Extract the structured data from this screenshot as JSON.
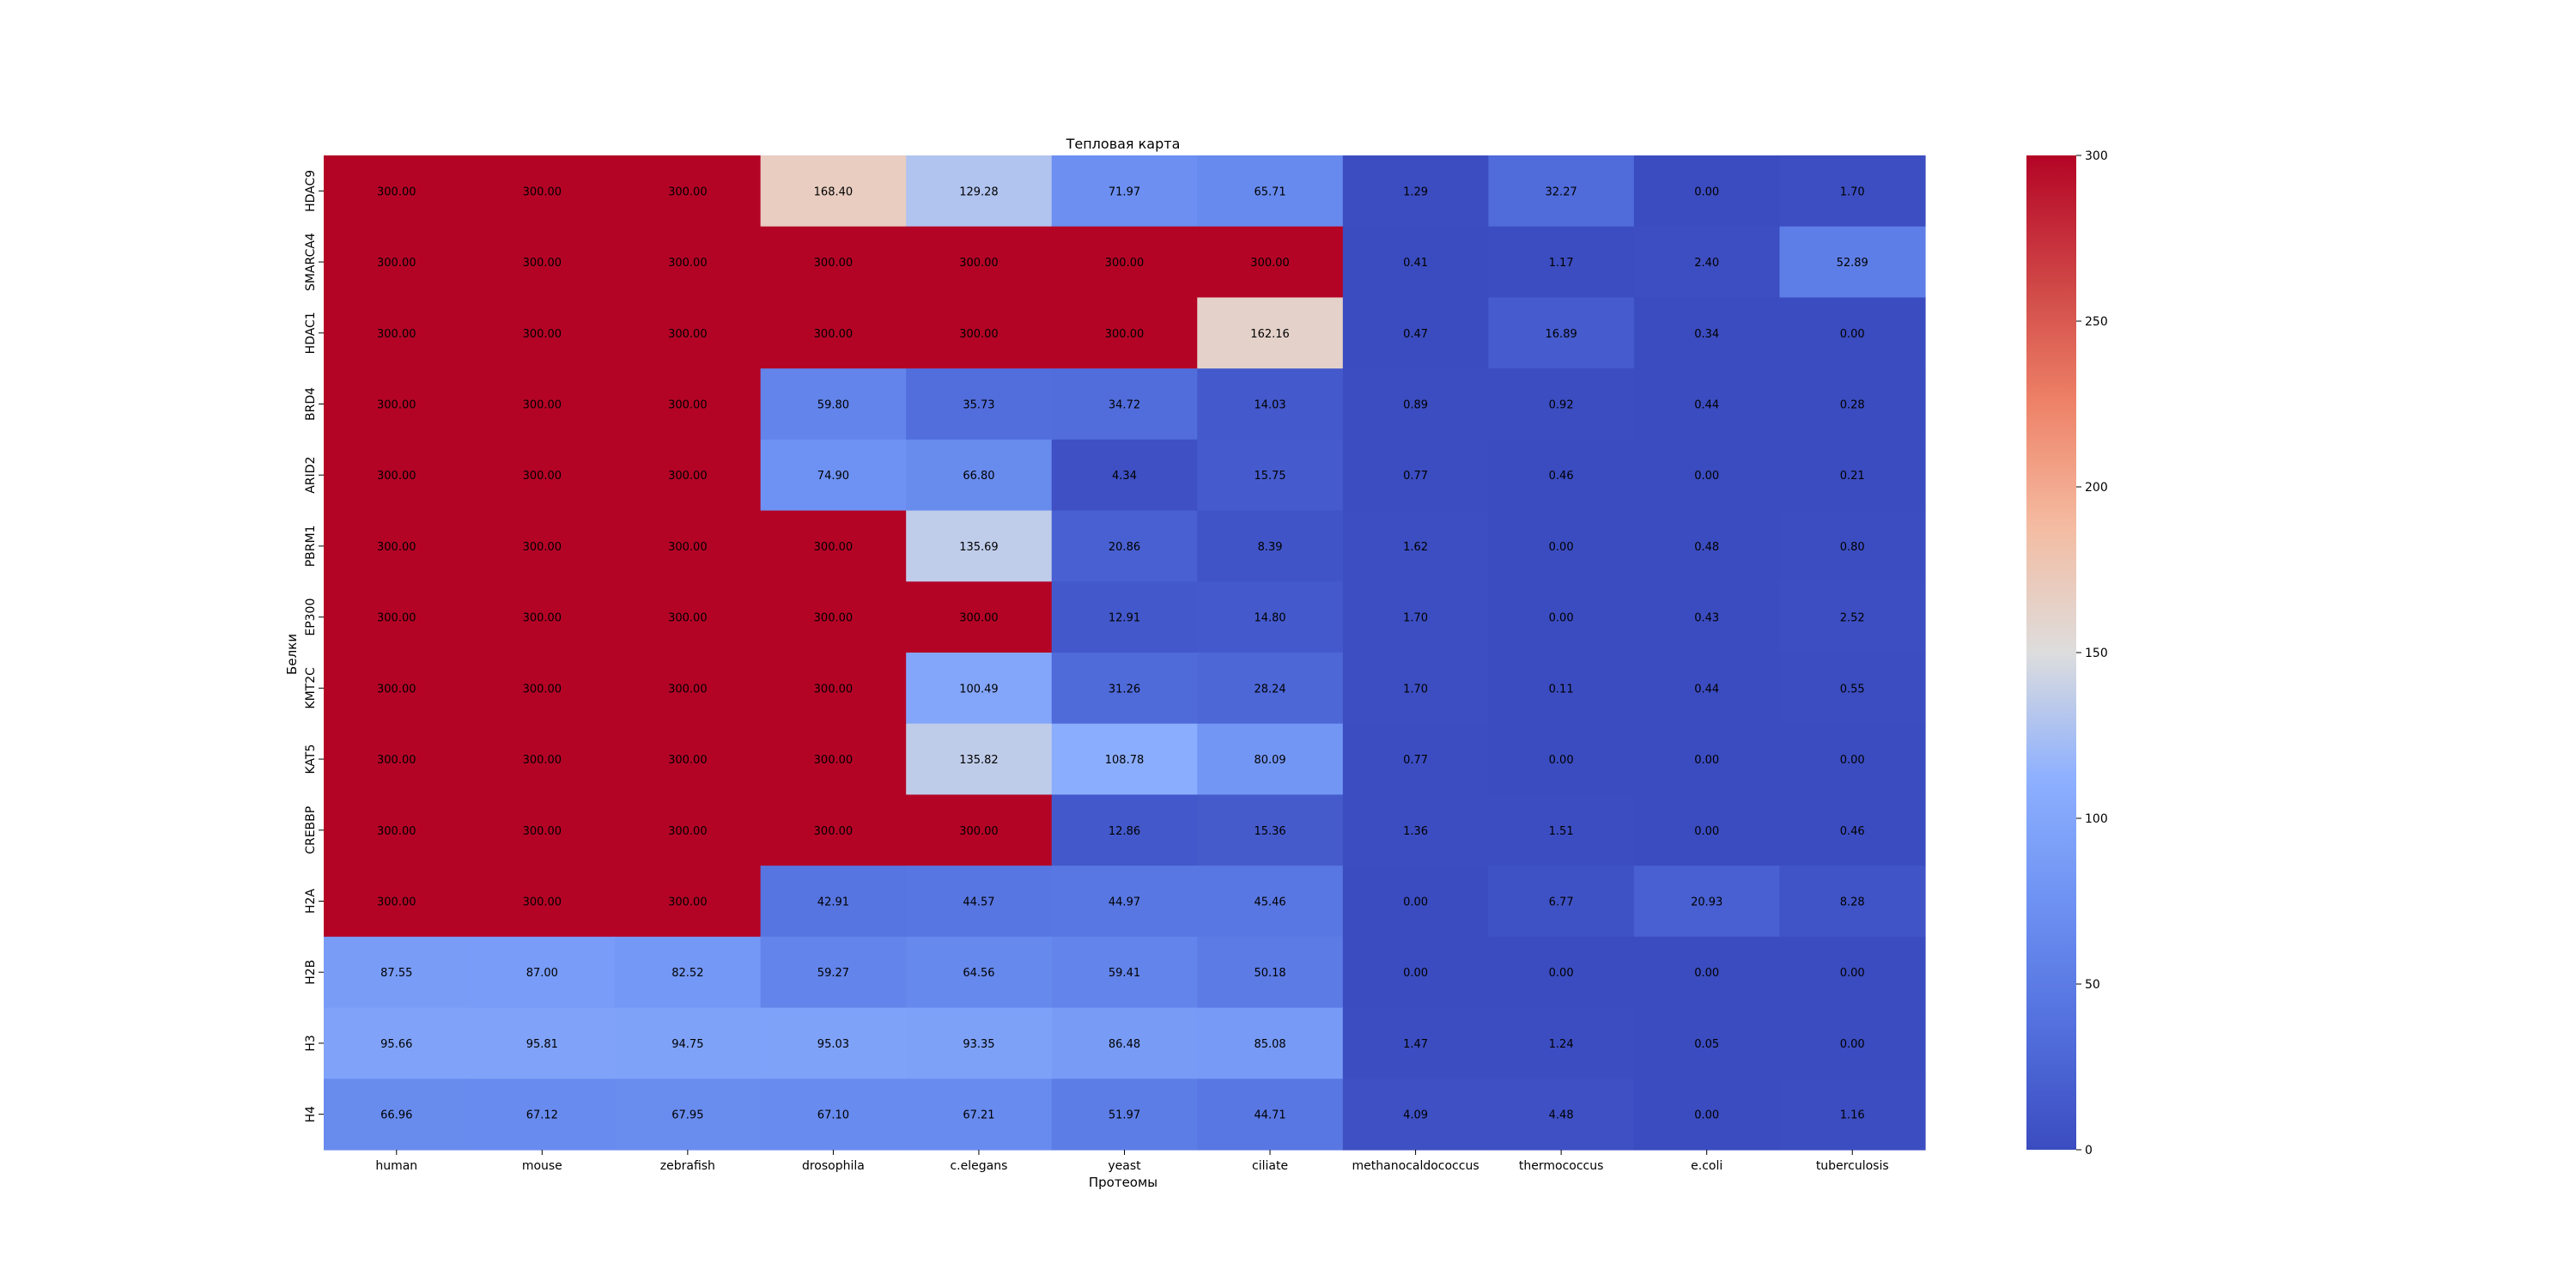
{
  "chart_data": {
    "type": "heatmap",
    "title": "Тепловая карта",
    "xlabel": "Протеомы",
    "ylabel": "Белки",
    "x_categories": [
      "human",
      "mouse",
      "zebrafish",
      "drosophila",
      "c.elegans",
      "yeast",
      "ciliate",
      "methanocaldococcus",
      "thermococcus",
      "e.coli",
      "tuberculosis"
    ],
    "y_categories": [
      "HDAC9",
      "SMARCA4",
      "HDAC1",
      "BRD4",
      "ARID2",
      "PBRM1",
      "EP300",
      "KMT2C",
      "KAT5",
      "CREBBP",
      "H2A",
      "H2B",
      "H3",
      "H4"
    ],
    "values": [
      [
        300.0,
        300.0,
        300.0,
        168.4,
        129.28,
        71.97,
        65.71,
        1.29,
        32.27,
        0.0,
        1.7
      ],
      [
        300.0,
        300.0,
        300.0,
        300.0,
        300.0,
        300.0,
        300.0,
        0.41,
        1.17,
        2.4,
        52.89
      ],
      [
        300.0,
        300.0,
        300.0,
        300.0,
        300.0,
        300.0,
        162.16,
        0.47,
        16.89,
        0.34,
        0.0
      ],
      [
        300.0,
        300.0,
        300.0,
        59.8,
        35.73,
        34.72,
        14.03,
        0.89,
        0.92,
        0.44,
        0.28
      ],
      [
        300.0,
        300.0,
        300.0,
        74.9,
        66.8,
        4.34,
        15.75,
        0.77,
        0.46,
        0.0,
        0.21
      ],
      [
        300.0,
        300.0,
        300.0,
        300.0,
        135.69,
        20.86,
        8.39,
        1.62,
        0.0,
        0.48,
        0.8
      ],
      [
        300.0,
        300.0,
        300.0,
        300.0,
        300.0,
        12.91,
        14.8,
        1.7,
        0.0,
        0.43,
        2.52
      ],
      [
        300.0,
        300.0,
        300.0,
        300.0,
        100.49,
        31.26,
        28.24,
        1.7,
        0.11,
        0.44,
        0.55
      ],
      [
        300.0,
        300.0,
        300.0,
        300.0,
        135.82,
        108.78,
        80.09,
        0.77,
        0.0,
        0.0,
        0.0
      ],
      [
        300.0,
        300.0,
        300.0,
        300.0,
        300.0,
        12.86,
        15.36,
        1.36,
        1.51,
        0.0,
        0.46
      ],
      [
        300.0,
        300.0,
        300.0,
        42.91,
        44.57,
        44.97,
        45.46,
        0.0,
        6.77,
        20.93,
        8.28
      ],
      [
        87.55,
        87.0,
        82.52,
        59.27,
        64.56,
        59.41,
        50.18,
        0.0,
        0.0,
        0.0,
        0.0
      ],
      [
        95.66,
        95.81,
        94.75,
        95.03,
        93.35,
        86.48,
        85.08,
        1.47,
        1.24,
        0.05,
        0.0
      ],
      [
        66.96,
        67.12,
        67.95,
        67.1,
        67.21,
        51.97,
        44.71,
        4.09,
        4.48,
        0.0,
        1.16
      ]
    ],
    "colorscale": "coolwarm",
    "vmin": 0,
    "vmax": 300,
    "colorbar_ticks": [
      0,
      50,
      100,
      150,
      200,
      250,
      300
    ],
    "annotation_format": "2 decimals",
    "grid": false,
    "legend": "colorbar-right"
  }
}
